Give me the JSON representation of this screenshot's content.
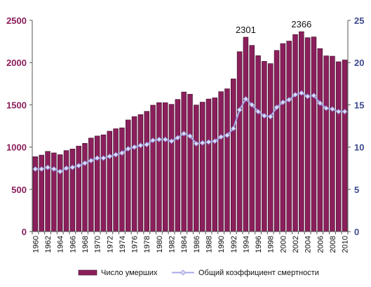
{
  "chart_data": {
    "type": "bar",
    "x": [
      1960,
      1961,
      1962,
      1963,
      1964,
      1965,
      1966,
      1967,
      1968,
      1969,
      1970,
      1971,
      1972,
      1973,
      1974,
      1975,
      1976,
      1977,
      1978,
      1979,
      1980,
      1981,
      1982,
      1983,
      1984,
      1985,
      1986,
      1987,
      1988,
      1989,
      1990,
      1991,
      1992,
      1993,
      1994,
      1995,
      1996,
      1997,
      1998,
      1999,
      2000,
      2001,
      2002,
      2003,
      2004,
      2005,
      2006,
      2007,
      2008,
      2009,
      2010
    ],
    "x_tick_labels": [
      "1960",
      "1962",
      "1964",
      "1966",
      "1968",
      "1970",
      "1972",
      "1974",
      "1976",
      "1978",
      "1980",
      "1982",
      "1984",
      "1986",
      "1988",
      "1990",
      "1992",
      "1994",
      "1996",
      "1998",
      "2000",
      "2002",
      "2004",
      "2006",
      "2008",
      "2010"
    ],
    "series": [
      {
        "name": "Число умерших",
        "type": "bar",
        "axis": "left",
        "color": "#8b1f5b",
        "values": [
          886,
          905,
          949,
          931,
          910,
          959,
          977,
          1012,
          1044,
          1107,
          1131,
          1145,
          1188,
          1217,
          1228,
          1321,
          1361,
          1385,
          1423,
          1496,
          1526,
          1525,
          1506,
          1564,
          1652,
          1626,
          1498,
          1532,
          1569,
          1583,
          1656,
          1690,
          1807,
          2129,
          2301,
          2204,
          2082,
          2015,
          1988,
          2144,
          2225,
          2255,
          2332,
          2366,
          2295,
          2304,
          2166,
          2080,
          2076,
          2010,
          2031
        ]
      },
      {
        "name": "Общий коэффициент смертности",
        "type": "line",
        "axis": "right",
        "color": "#a8a8e8",
        "values": [
          7.4,
          7.4,
          7.6,
          7.4,
          7.1,
          7.5,
          7.6,
          7.8,
          8.1,
          8.4,
          8.7,
          8.7,
          8.9,
          9.1,
          9.3,
          9.8,
          10.0,
          10.2,
          10.3,
          10.8,
          10.9,
          10.9,
          10.7,
          11.1,
          11.6,
          11.3,
          10.4,
          10.5,
          10.6,
          10.7,
          11.2,
          11.4,
          12.2,
          14.4,
          15.7,
          15.0,
          14.2,
          13.7,
          13.6,
          14.7,
          15.3,
          15.6,
          16.2,
          16.4,
          16.0,
          16.1,
          15.2,
          14.6,
          14.5,
          14.2,
          14.2
        ]
      }
    ],
    "y_left": {
      "min": 0,
      "max": 2500,
      "ticks": [
        0,
        500,
        1000,
        1500,
        2000,
        2500
      ],
      "color": "#8b1f5b"
    },
    "y_right": {
      "min": 0,
      "max": 25,
      "ticks": [
        0,
        5,
        10,
        15,
        20,
        25
      ],
      "color": "#3e4a8f"
    },
    "annotations": [
      {
        "x": 1994,
        "label": "2301"
      },
      {
        "x": 2003,
        "label": "2366"
      }
    ],
    "legend": {
      "position": "bottom"
    },
    "grid": false
  }
}
